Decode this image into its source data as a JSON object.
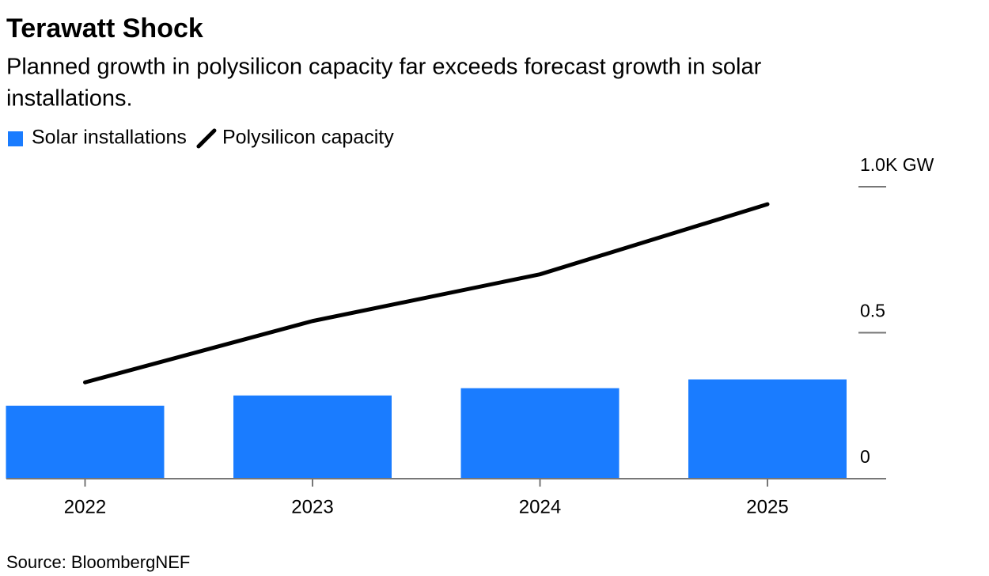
{
  "chart_data": {
    "type": "bar",
    "title": "Terawatt Shock",
    "subtitle": [
      "Planned growth in polysilicon capacity far exceeds forecast growth in solar",
      "installations."
    ],
    "source": "Source: BloombergNEF",
    "categories": [
      "2022",
      "2023",
      "2024",
      "2025"
    ],
    "series": [
      {
        "name": "Solar installations",
        "type": "bar",
        "color": "#1a7cff",
        "values": [
          0.25,
          0.285,
          0.31,
          0.34
        ]
      },
      {
        "name": "Polysilicon capacity",
        "type": "line",
        "color": "#000000",
        "values": [
          0.33,
          0.54,
          0.7,
          0.94
        ]
      }
    ],
    "ylim": [
      0,
      1
    ],
    "yticks": [
      0,
      0.5,
      {
        "value": 1,
        "label": "1.0K GW"
      }
    ]
  }
}
